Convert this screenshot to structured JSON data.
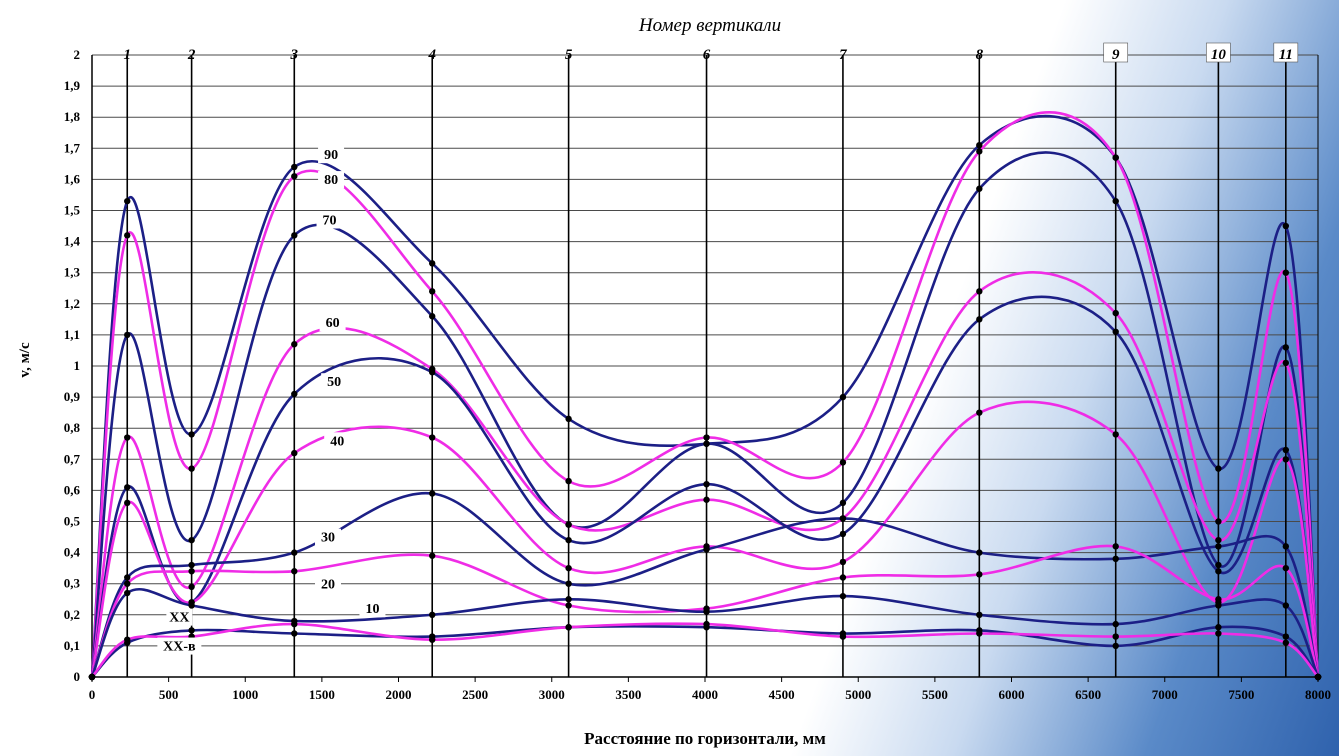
{
  "chart_data": {
    "type": "line",
    "title": "",
    "top_label": "Номер вертикали",
    "xlabel": "Расстояние по горизонтали, мм",
    "ylabel": "v, м/с",
    "xlim": [
      0,
      8000
    ],
    "ylim": [
      0,
      2
    ],
    "grid": true,
    "x_ticks": [
      "0",
      "500",
      "1000",
      "1500",
      "2000",
      "2500",
      "3000",
      "3500",
      "4000",
      "4500",
      "5000",
      "5500",
      "6000",
      "6500",
      "7000",
      "7500",
      "8000"
    ],
    "y_ticks": [
      "0",
      "0,1",
      "0,2",
      "0,3",
      "0,4",
      "0,5",
      "0,6",
      "0,7",
      "0,8",
      "0,9",
      "1",
      "1,1",
      "1,2",
      "1,3",
      "1,4",
      "1,5",
      "1,6",
      "1,7",
      "1,8",
      "1,9",
      "2"
    ],
    "verticals": {
      "labels": [
        "1",
        "2",
        "3",
        "4",
        "5",
        "6",
        "7",
        "8",
        "9",
        "10",
        "11"
      ],
      "x": [
        230,
        650,
        1320,
        2220,
        3110,
        4010,
        4900,
        5790,
        6680,
        7350,
        7790
      ]
    },
    "colors": {
      "navy": "#1c1f86",
      "magenta": "#ef2ce6"
    },
    "series": [
      {
        "name": "90",
        "color": "navy",
        "y": [
          0,
          1.53,
          0.78,
          1.64,
          1.33,
          0.83,
          0.75,
          0.9,
          1.71,
          1.67,
          0.67,
          1.45,
          0
        ]
      },
      {
        "name": "80",
        "color": "magenta",
        "y": [
          0,
          1.42,
          0.67,
          1.61,
          1.24,
          0.63,
          0.77,
          0.69,
          1.69,
          1.67,
          0.5,
          1.3,
          0
        ]
      },
      {
        "name": "70",
        "color": "navy",
        "y": [
          0,
          1.1,
          0.44,
          1.42,
          1.16,
          0.49,
          0.75,
          0.56,
          1.57,
          1.53,
          0.36,
          1.06,
          0
        ]
      },
      {
        "name": "60",
        "color": "magenta",
        "y": [
          0,
          0.77,
          0.29,
          1.07,
          0.99,
          0.49,
          0.57,
          0.51,
          1.24,
          1.17,
          0.44,
          1.01,
          0
        ]
      },
      {
        "name": "50",
        "color": "navy",
        "y": [
          0,
          0.61,
          0.24,
          0.91,
          0.98,
          0.44,
          0.62,
          0.46,
          1.15,
          1.11,
          0.34,
          0.73,
          0
        ]
      },
      {
        "name": "40",
        "color": "magenta",
        "y": [
          0,
          0.56,
          0.24,
          0.72,
          0.77,
          0.35,
          0.42,
          0.37,
          0.85,
          0.78,
          0.24,
          0.7,
          0
        ]
      },
      {
        "name": "30",
        "color": "navy",
        "y": [
          0,
          0.32,
          0.36,
          0.4,
          0.59,
          0.3,
          0.41,
          0.51,
          0.4,
          0.38,
          0.42,
          0.42,
          0
        ]
      },
      {
        "name": "20",
        "color": "magenta",
        "y": [
          0,
          0.3,
          0.34,
          0.34,
          0.39,
          0.23,
          0.22,
          0.32,
          0.33,
          0.42,
          0.25,
          0.35,
          0
        ]
      },
      {
        "name": "10",
        "color": "navy",
        "y": [
          0,
          0.27,
          0.23,
          0.18,
          0.2,
          0.25,
          0.21,
          0.26,
          0.2,
          0.17,
          0.23,
          0.23,
          0
        ]
      },
      {
        "name": "XX",
        "color": "navy",
        "y": [
          0,
          0.11,
          0.15,
          0.14,
          0.13,
          0.16,
          0.16,
          0.14,
          0.15,
          0.1,
          0.16,
          0.13,
          0
        ]
      },
      {
        "name": "XX-в",
        "color": "magenta",
        "y": [
          0,
          0.12,
          0.13,
          0.17,
          0.12,
          0.16,
          0.17,
          0.13,
          0.14,
          0.13,
          0.14,
          0.11,
          0
        ]
      }
    ],
    "point_x": [
      0,
      230,
      650,
      1320,
      2220,
      3110,
      4010,
      4900,
      5790,
      6680,
      7350,
      7790,
      8000
    ]
  }
}
